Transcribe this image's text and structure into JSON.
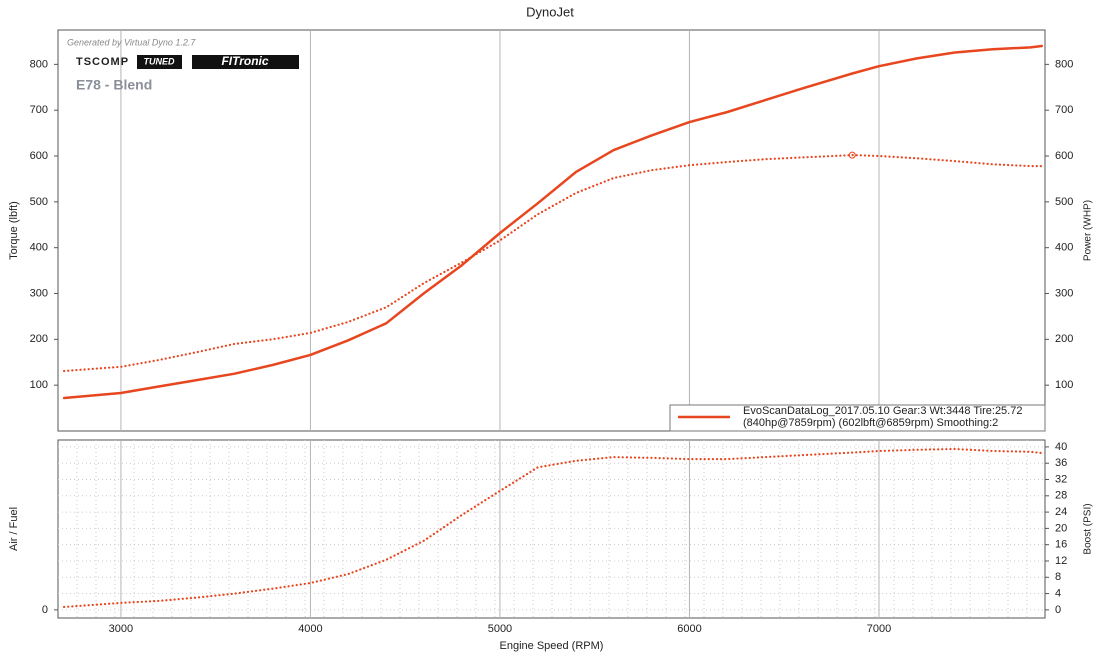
{
  "chart_data": [
    {
      "type": "line",
      "title": "DynoJet",
      "annotations": [
        "Generated by Virtual Dyno 1.2.7",
        "TSCOMP",
        "TUNED",
        "FITronic",
        "E78 - Blend"
      ],
      "ylabel": "Torque (lbft)",
      "y2label": "Power (WHP)",
      "x": [
        2700,
        3000,
        3200,
        3400,
        3600,
        3800,
        4000,
        4200,
        4400,
        4600,
        4800,
        5000,
        5200,
        5400,
        5600,
        5800,
        6000,
        6200,
        6400,
        6600,
        6859,
        7000,
        7200,
        7400,
        7600,
        7800,
        7859
      ],
      "xlim": [
        2668,
        7876
      ],
      "xticks": [
        3000,
        4000,
        5000,
        6000,
        7000
      ],
      "ylim": [
        0,
        875
      ],
      "yticks": [
        100,
        200,
        300,
        400,
        500,
        600,
        700,
        800
      ],
      "y2lim": [
        0,
        875
      ],
      "y2ticks": [
        100,
        200,
        300,
        400,
        500,
        600,
        700,
        800
      ],
      "series": [
        {
          "color": "#e8461e",
          "style": "solid",
          "axis": "y2",
          "values": [
            72,
            83,
            97,
            111,
            125,
            144,
            166,
            198,
            235,
            301,
            362,
            432,
            497,
            565,
            613,
            645,
            674,
            696,
            722,
            748,
            780,
            796,
            813,
            826,
            833,
            837,
            840
          ]
        },
        {
          "color": "#e8461e",
          "style": "dotted",
          "axis": "y",
          "values": [
            131,
            140,
            155,
            172,
            190,
            200,
            214,
            238,
            270,
            323,
            368,
            416,
            473,
            519,
            552,
            569,
            580,
            587,
            593,
            597,
            602,
            600,
            595,
            589,
            582,
            578,
            578
          ]
        }
      ],
      "legend": {
        "label": "EvoScanDataLog_2017.05.10 Gear:3 Wt:3448 Tire:25.72",
        "detail": "(840hp@7859rpm) (602lbft@6859rpm) Smoothing:2",
        "color": "#e8461e"
      }
    },
    {
      "type": "line",
      "xlabel": "Engine Speed (RPM)",
      "ylabel": "Air / Fuel",
      "y2label": "Boost (PSI)",
      "x": [
        2700,
        3000,
        3200,
        3400,
        3600,
        3800,
        4000,
        4200,
        4400,
        4600,
        4800,
        5000,
        5200,
        5400,
        5600,
        5800,
        6000,
        6200,
        6400,
        6600,
        6859,
        7000,
        7200,
        7400,
        7600,
        7800,
        7859
      ],
      "xlim": [
        2668,
        7876
      ],
      "xticks": [
        3000,
        4000,
        5000,
        6000,
        7000
      ],
      "ylim": [
        -2,
        41.7
      ],
      "yticks": [
        0
      ],
      "y2lim": [
        -2,
        41.7
      ],
      "y2ticks": [
        0,
        4,
        8,
        12,
        16,
        20,
        24,
        28,
        32,
        36,
        40
      ],
      "series": [
        {
          "color": "#e8461e",
          "style": "dotted",
          "axis": "y2",
          "values": [
            0.7,
            1.7,
            2.2,
            3,
            4,
            5.2,
            6.6,
            8.8,
            12.3,
            17,
            23.3,
            29.2,
            35,
            36.6,
            37.5,
            37.3,
            37,
            37,
            37.5,
            38,
            38.6,
            39,
            39.3,
            39.5,
            39,
            38.8,
            38.5
          ]
        }
      ]
    }
  ]
}
